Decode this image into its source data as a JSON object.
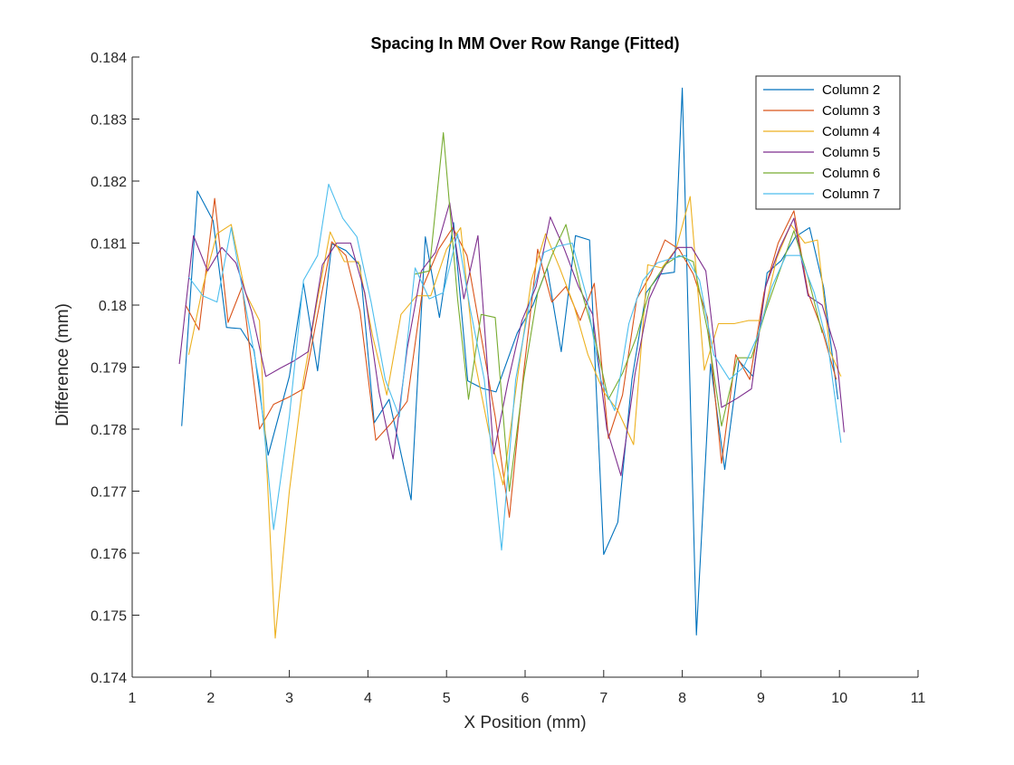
{
  "chart_data": {
    "type": "line",
    "title": "Spacing In MM Over Row Range (Fitted)",
    "xlabel": "X Position (mm)",
    "ylabel": "Difference (mm)",
    "xlim": [
      1,
      11
    ],
    "ylim": [
      0.174,
      0.184
    ],
    "xticks": [
      1,
      2,
      3,
      4,
      5,
      6,
      7,
      8,
      9,
      10,
      11
    ],
    "xtick_labels": [
      "1",
      "2",
      "3",
      "4",
      "5",
      "6",
      "7",
      "8",
      "9",
      "10",
      "11"
    ],
    "yticks": [
      0.174,
      0.175,
      0.176,
      0.177,
      0.178,
      0.179,
      0.18,
      0.181,
      0.182,
      0.183,
      0.184
    ],
    "ytick_labels": [
      "0.174",
      "0.175",
      "0.176",
      "0.177",
      "0.178",
      "0.179",
      "0.18",
      "0.181",
      "0.182",
      "0.183",
      "0.184"
    ],
    "grid": false,
    "legend_position": "top-right",
    "series": [
      {
        "name": "Column 2",
        "color": "#0072BD",
        "points": [
          [
            1.63,
            0.17805
          ],
          [
            1.83,
            0.18184
          ],
          [
            2.03,
            0.18136
          ],
          [
            2.2,
            0.17964
          ],
          [
            2.38,
            0.17962
          ],
          [
            2.55,
            0.17928
          ],
          [
            2.73,
            0.17758
          ],
          [
            3.0,
            0.17885
          ],
          [
            3.18,
            0.18035
          ],
          [
            3.36,
            0.17894
          ],
          [
            3.54,
            0.18099
          ],
          [
            3.72,
            0.18088
          ],
          [
            3.9,
            0.18064
          ],
          [
            4.08,
            0.1781
          ],
          [
            4.27,
            0.17848
          ],
          [
            4.55,
            0.17686
          ],
          [
            4.73,
            0.1811
          ],
          [
            4.91,
            0.1798
          ],
          [
            5.09,
            0.18133
          ],
          [
            5.27,
            0.17878
          ],
          [
            5.45,
            0.17866
          ],
          [
            5.63,
            0.1786
          ],
          [
            5.9,
            0.17955
          ],
          [
            6.1,
            0.18
          ],
          [
            6.28,
            0.1806
          ],
          [
            6.46,
            0.17925
          ],
          [
            6.64,
            0.18112
          ],
          [
            6.82,
            0.18105
          ],
          [
            7.0,
            0.17598
          ],
          [
            7.18,
            0.1765
          ],
          [
            7.36,
            0.1788
          ],
          [
            7.54,
            0.1802
          ],
          [
            7.72,
            0.1805
          ],
          [
            7.9,
            0.18053
          ],
          [
            8.0,
            0.1835
          ],
          [
            8.18,
            0.17468
          ],
          [
            8.36,
            0.17905
          ],
          [
            8.54,
            0.17735
          ],
          [
            8.72,
            0.1791
          ],
          [
            8.9,
            0.17885
          ],
          [
            9.08,
            0.18052
          ],
          [
            9.26,
            0.18072
          ],
          [
            9.44,
            0.1811
          ],
          [
            9.62,
            0.18125
          ],
          [
            9.8,
            0.18028
          ],
          [
            9.98,
            0.17848
          ]
        ]
      },
      {
        "name": "Column 3",
        "color": "#D95319",
        "points": [
          [
            1.68,
            0.18
          ],
          [
            1.85,
            0.1796
          ],
          [
            2.05,
            0.18172
          ],
          [
            2.22,
            0.17972
          ],
          [
            2.4,
            0.1803
          ],
          [
            2.62,
            0.178
          ],
          [
            2.8,
            0.1784
          ],
          [
            3.0,
            0.17852
          ],
          [
            3.18,
            0.17865
          ],
          [
            3.36,
            0.17985
          ],
          [
            3.54,
            0.18102
          ],
          [
            3.72,
            0.1808
          ],
          [
            3.9,
            0.1799
          ],
          [
            4.1,
            0.17782
          ],
          [
            4.3,
            0.1781
          ],
          [
            4.5,
            0.17845
          ],
          [
            4.7,
            0.1803
          ],
          [
            4.9,
            0.1809
          ],
          [
            5.08,
            0.18125
          ],
          [
            5.26,
            0.1808
          ],
          [
            5.44,
            0.1795
          ],
          [
            5.62,
            0.1782
          ],
          [
            5.8,
            0.17658
          ],
          [
            5.98,
            0.1789
          ],
          [
            6.16,
            0.1809
          ],
          [
            6.34,
            0.18005
          ],
          [
            6.52,
            0.1803
          ],
          [
            6.7,
            0.17975
          ],
          [
            6.88,
            0.18035
          ],
          [
            7.06,
            0.17785
          ],
          [
            7.24,
            0.17855
          ],
          [
            7.42,
            0.1801
          ],
          [
            7.6,
            0.1805
          ],
          [
            7.78,
            0.18105
          ],
          [
            7.96,
            0.1809
          ],
          [
            8.14,
            0.1805
          ],
          [
            8.32,
            0.1798
          ],
          [
            8.5,
            0.17745
          ],
          [
            8.68,
            0.1792
          ],
          [
            8.86,
            0.1788
          ],
          [
            9.04,
            0.1802
          ],
          [
            9.22,
            0.181
          ],
          [
            9.42,
            0.18152
          ],
          [
            9.6,
            0.1802
          ],
          [
            9.78,
            0.1796
          ],
          [
            9.96,
            0.1788
          ]
        ]
      },
      {
        "name": "Column 4",
        "color": "#EDB120",
        "points": [
          [
            1.72,
            0.1792
          ],
          [
            1.9,
            0.1803
          ],
          [
            2.08,
            0.18115
          ],
          [
            2.26,
            0.1813
          ],
          [
            2.44,
            0.1802
          ],
          [
            2.62,
            0.17975
          ],
          [
            2.82,
            0.17463
          ],
          [
            3.0,
            0.177
          ],
          [
            3.18,
            0.1788
          ],
          [
            3.36,
            0.1801
          ],
          [
            3.52,
            0.18118
          ],
          [
            3.7,
            0.1807
          ],
          [
            3.88,
            0.1807
          ],
          [
            4.06,
            0.1795
          ],
          [
            4.24,
            0.17855
          ],
          [
            4.42,
            0.17985
          ],
          [
            4.62,
            0.18015
          ],
          [
            4.8,
            0.18015
          ],
          [
            5.0,
            0.1809
          ],
          [
            5.18,
            0.18125
          ],
          [
            5.36,
            0.1791
          ],
          [
            5.54,
            0.17795
          ],
          [
            5.72,
            0.1771
          ],
          [
            5.9,
            0.1788
          ],
          [
            6.08,
            0.1804
          ],
          [
            6.26,
            0.18115
          ],
          [
            6.44,
            0.1806
          ],
          [
            6.62,
            0.18
          ],
          [
            6.8,
            0.1792
          ],
          [
            7.0,
            0.1786
          ],
          [
            7.18,
            0.1783
          ],
          [
            7.38,
            0.17775
          ],
          [
            7.56,
            0.18065
          ],
          [
            7.74,
            0.1806
          ],
          [
            7.92,
            0.1809
          ],
          [
            8.1,
            0.18175
          ],
          [
            8.28,
            0.17895
          ],
          [
            8.46,
            0.1797
          ],
          [
            8.66,
            0.1797
          ],
          [
            8.84,
            0.17975
          ],
          [
            9.02,
            0.17975
          ],
          [
            9.2,
            0.18075
          ],
          [
            9.38,
            0.1813
          ],
          [
            9.56,
            0.181
          ],
          [
            9.72,
            0.18105
          ],
          [
            9.88,
            0.17925
          ],
          [
            10.02,
            0.17885
          ]
        ]
      },
      {
        "name": "Column 5",
        "color": "#7E2F8E",
        "points": [
          [
            1.6,
            0.17905
          ],
          [
            1.78,
            0.18112
          ],
          [
            1.96,
            0.18055
          ],
          [
            2.14,
            0.18093
          ],
          [
            2.32,
            0.18068
          ],
          [
            2.52,
            0.1799
          ],
          [
            2.7,
            0.17885
          ],
          [
            2.88,
            0.17898
          ],
          [
            3.06,
            0.1791
          ],
          [
            3.24,
            0.17925
          ],
          [
            3.42,
            0.18065
          ],
          [
            3.6,
            0.181
          ],
          [
            3.78,
            0.181
          ],
          [
            3.96,
            0.1802
          ],
          [
            4.14,
            0.1786
          ],
          [
            4.32,
            0.17752
          ],
          [
            4.5,
            0.1793
          ],
          [
            4.68,
            0.18055
          ],
          [
            4.86,
            0.18085
          ],
          [
            5.04,
            0.18165
          ],
          [
            5.22,
            0.1801
          ],
          [
            5.4,
            0.18112
          ],
          [
            5.6,
            0.1776
          ],
          [
            5.78,
            0.17875
          ],
          [
            5.96,
            0.17975
          ],
          [
            6.14,
            0.1803
          ],
          [
            6.32,
            0.18142
          ],
          [
            6.5,
            0.1809
          ],
          [
            6.68,
            0.1803
          ],
          [
            6.86,
            0.17985
          ],
          [
            7.04,
            0.178
          ],
          [
            7.22,
            0.17725
          ],
          [
            7.4,
            0.1789
          ],
          [
            7.58,
            0.1801
          ],
          [
            7.76,
            0.1806
          ],
          [
            7.94,
            0.18093
          ],
          [
            8.12,
            0.18093
          ],
          [
            8.3,
            0.18055
          ],
          [
            8.5,
            0.17835
          ],
          [
            8.7,
            0.1785
          ],
          [
            8.88,
            0.17865
          ],
          [
            9.06,
            0.1803
          ],
          [
            9.24,
            0.18092
          ],
          [
            9.42,
            0.1814
          ],
          [
            9.6,
            0.18015
          ],
          [
            9.78,
            0.18
          ],
          [
            9.96,
            0.17925
          ],
          [
            10.06,
            0.17795
          ]
        ]
      },
      {
        "name": "Column 6",
        "color": "#77AC30",
        "points": [
          [
            4.6,
            0.1805
          ],
          [
            4.78,
            0.18055
          ],
          [
            4.96,
            0.18278
          ],
          [
            5.14,
            0.1801
          ],
          [
            5.28,
            0.17848
          ],
          [
            5.44,
            0.17985
          ],
          [
            5.62,
            0.1798
          ],
          [
            5.8,
            0.177
          ],
          [
            5.98,
            0.1788
          ],
          [
            6.16,
            0.1802
          ],
          [
            6.34,
            0.1808
          ],
          [
            6.52,
            0.1813
          ],
          [
            6.7,
            0.1803
          ],
          [
            6.88,
            0.1795
          ],
          [
            7.06,
            0.17848
          ],
          [
            7.24,
            0.1789
          ],
          [
            7.42,
            0.1795
          ],
          [
            7.6,
            0.1803
          ],
          [
            7.78,
            0.18065
          ],
          [
            7.96,
            0.1808
          ],
          [
            8.14,
            0.1807
          ],
          [
            8.32,
            0.1796
          ],
          [
            8.5,
            0.17805
          ],
          [
            8.7,
            0.17915
          ],
          [
            8.88,
            0.17915
          ],
          [
            9.06,
            0.1799
          ],
          [
            9.24,
            0.18055
          ],
          [
            9.42,
            0.1812
          ],
          [
            9.6,
            0.18045
          ],
          [
            9.78,
            0.17955
          ]
        ]
      },
      {
        "name": "Column 7",
        "color": "#4DBEEE",
        "points": [
          [
            1.72,
            0.18045
          ],
          [
            1.9,
            0.18015
          ],
          [
            2.08,
            0.18005
          ],
          [
            2.26,
            0.18125
          ],
          [
            2.44,
            0.18
          ],
          [
            2.62,
            0.17875
          ],
          [
            2.8,
            0.17638
          ],
          [
            3.0,
            0.1782
          ],
          [
            3.18,
            0.1804
          ],
          [
            3.36,
            0.1808
          ],
          [
            3.5,
            0.18195
          ],
          [
            3.68,
            0.1814
          ],
          [
            3.86,
            0.1811
          ],
          [
            4.04,
            0.18005
          ],
          [
            4.22,
            0.1788
          ],
          [
            4.4,
            0.1782
          ],
          [
            4.6,
            0.1806
          ],
          [
            4.78,
            0.1801
          ],
          [
            4.96,
            0.1802
          ],
          [
            5.14,
            0.18115
          ],
          [
            5.3,
            0.17995
          ],
          [
            5.48,
            0.1788
          ],
          [
            5.7,
            0.17605
          ],
          [
            5.88,
            0.1788
          ],
          [
            6.06,
            0.18005
          ],
          [
            6.24,
            0.18085
          ],
          [
            6.42,
            0.18095
          ],
          [
            6.6,
            0.181
          ],
          [
            6.78,
            0.18015
          ],
          [
            6.96,
            0.1788
          ],
          [
            7.14,
            0.1783
          ],
          [
            7.32,
            0.1797
          ],
          [
            7.5,
            0.1804
          ],
          [
            7.68,
            0.18068
          ],
          [
            7.86,
            0.18075
          ],
          [
            8.04,
            0.1808
          ],
          [
            8.22,
            0.1804
          ],
          [
            8.4,
            0.1792
          ],
          [
            8.6,
            0.1788
          ],
          [
            8.78,
            0.179
          ],
          [
            8.96,
            0.1795
          ],
          [
            9.14,
            0.1803
          ],
          [
            9.32,
            0.1808
          ],
          [
            9.5,
            0.1808
          ],
          [
            9.68,
            0.1802
          ],
          [
            9.86,
            0.1793
          ],
          [
            10.02,
            0.17778
          ]
        ]
      }
    ]
  }
}
